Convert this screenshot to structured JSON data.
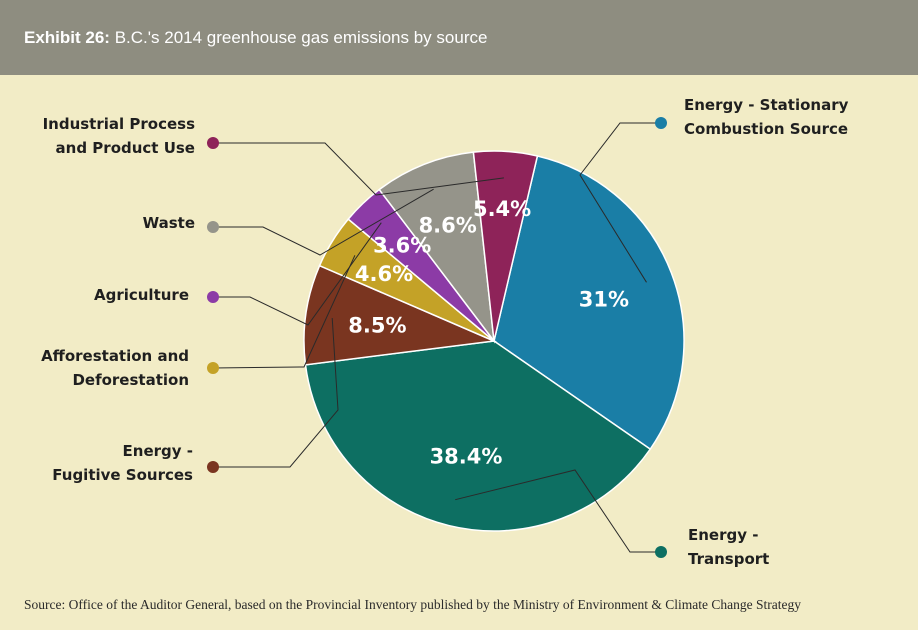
{
  "header": {
    "exhibit": "Exhibit 26:",
    "title": "B.C.'s 2014 greenhouse gas emissions by source"
  },
  "chart_data": {
    "type": "pie",
    "title": "B.C.'s 2014 greenhouse gas emissions by source",
    "slices": [
      {
        "label": [
          "Energy - Stationary",
          "Combustion Source"
        ],
        "value": 31,
        "display": "31%",
        "color": "#1a7ea6"
      },
      {
        "label": [
          "Energy -",
          "Transport"
        ],
        "value": 38.4,
        "display": "38.4%",
        "color": "#0d6f62"
      },
      {
        "label": [
          "Energy -",
          "Fugitive Sources"
        ],
        "value": 8.5,
        "display": "8.5%",
        "color": "#7a3520"
      },
      {
        "label": [
          "Afforestation and",
          "Deforestation"
        ],
        "value": 4.6,
        "display": "4.6%",
        "color": "#c4a227"
      },
      {
        "label": [
          "Agriculture"
        ],
        "value": 3.6,
        "display": "3.6%",
        "color": "#8c3ba6"
      },
      {
        "label": [
          "Waste"
        ],
        "value": 8.6,
        "display": "8.6%",
        "color": "#95948a"
      },
      {
        "label": [
          "Industrial Process",
          "and Product Use"
        ],
        "value": 5.4,
        "display": "5.4%",
        "color": "#8e2359"
      }
    ]
  },
  "source": "Source: Office of the Auditor General, based on the Provincial Inventory published by the Ministry of Environment & Climate Change Strategy"
}
